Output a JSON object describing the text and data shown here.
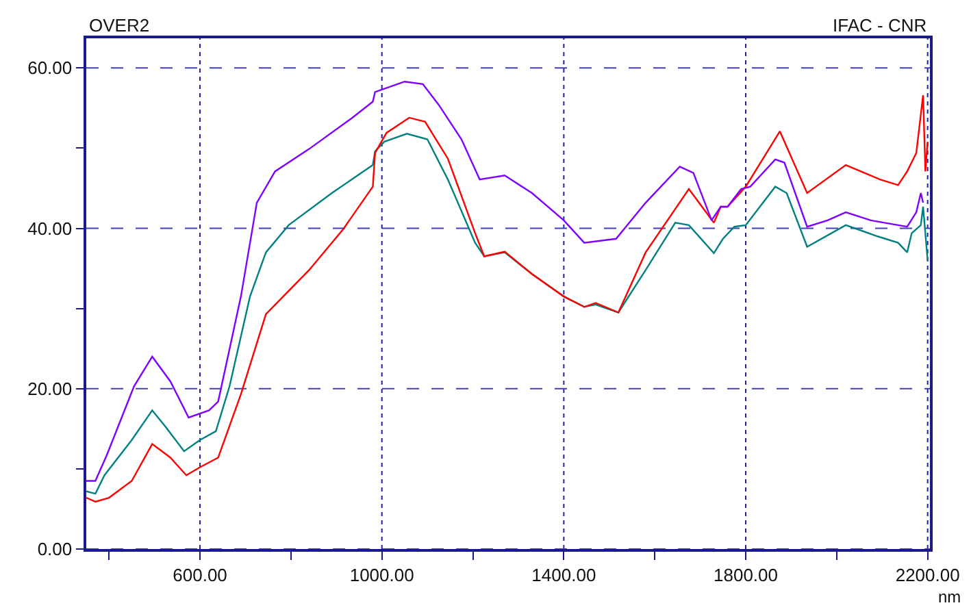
{
  "chart_data": {
    "type": "line",
    "title": "OVER2",
    "xlabel": "nm",
    "annotations": [
      "IFAC - CNR"
    ],
    "xlim": [
      350,
      2205
    ],
    "ylim": [
      0,
      63.7
    ],
    "xticks": [
      {
        "value": 400,
        "label": null
      },
      {
        "value": 600,
        "label": "600.00"
      },
      {
        "value": 800,
        "label": null
      },
      {
        "value": 1000,
        "label": "1000.00"
      },
      {
        "value": 1200,
        "label": null
      },
      {
        "value": 1400,
        "label": "1400.00"
      },
      {
        "value": 1600,
        "label": null
      },
      {
        "value": 1800,
        "label": "1800.00"
      },
      {
        "value": 2000,
        "label": null
      },
      {
        "value": 2200,
        "label": "2200.00"
      }
    ],
    "yticks": [
      {
        "value": 0,
        "label": "0.00"
      },
      {
        "value": 10,
        "label": null
      },
      {
        "value": 20,
        "label": "20.00"
      },
      {
        "value": 30,
        "label": null
      },
      {
        "value": 40,
        "label": "40.00"
      },
      {
        "value": 50,
        "label": null
      },
      {
        "value": 60,
        "label": "60.00"
      }
    ],
    "grid": true,
    "line_style": "solid",
    "marker": "none",
    "series": [
      {
        "color": "#8000ff",
        "x": [
          350,
          370,
          395,
          455,
          495,
          535,
          575,
          620,
          640,
          690,
          725,
          765,
          840,
          935,
          980,
          985,
          1050,
          1090,
          1125,
          1175,
          1215,
          1270,
          1330,
          1400,
          1445,
          1515,
          1580,
          1655,
          1685,
          1725,
          1745,
          1760,
          1790,
          1810,
          1865,
          1885,
          1935,
          1980,
          2020,
          2075,
          2135,
          2155,
          2175,
          2185,
          2190
        ],
        "values": [
          8.5,
          8.5,
          11.7,
          20.3,
          24.0,
          20.9,
          16.4,
          17.3,
          18.4,
          31.5,
          43.2,
          47.1,
          49.9,
          53.8,
          55.8,
          57.0,
          58.3,
          58.0,
          55.4,
          51.1,
          46.1,
          46.6,
          44.4,
          41.0,
          38.2,
          38.7,
          43.2,
          47.7,
          46.9,
          41.0,
          42.7,
          42.7,
          44.9,
          45.2,
          48.6,
          48.2,
          40.2,
          41.0,
          42.0,
          41.0,
          40.4,
          40.2,
          42.0,
          44.4,
          43.2
        ]
      },
      {
        "color": "#ff0000",
        "x": [
          350,
          370,
          400,
          450,
          495,
          535,
          570,
          600,
          640,
          690,
          745,
          840,
          915,
          980,
          985,
          1010,
          1060,
          1095,
          1145,
          1205,
          1225,
          1270,
          1330,
          1400,
          1445,
          1470,
          1520,
          1580,
          1675,
          1730,
          1745,
          1760,
          1800,
          1875,
          1935,
          2020,
          2095,
          2135,
          2155,
          2175,
          2190,
          2195,
          2200
        ],
        "values": [
          6.4,
          5.9,
          6.4,
          8.5,
          13.1,
          11.4,
          9.2,
          10.2,
          11.4,
          19.3,
          29.3,
          34.8,
          39.9,
          45.2,
          49.4,
          51.9,
          53.8,
          53.3,
          48.7,
          39.4,
          36.5,
          37.1,
          34.3,
          31.5,
          30.2,
          30.7,
          29.5,
          37.0,
          44.9,
          40.7,
          42.7,
          42.7,
          45.2,
          52.1,
          44.4,
          47.9,
          46.1,
          45.4,
          47.1,
          49.4,
          56.6,
          47.1,
          50.8
        ]
      },
      {
        "color": "#008080",
        "x": [
          350,
          370,
          390,
          450,
          495,
          525,
          565,
          600,
          635,
          665,
          710,
          745,
          795,
          890,
          980,
          985,
          1005,
          1055,
          1100,
          1145,
          1205,
          1225,
          1270,
          1330,
          1400,
          1445,
          1470,
          1520,
          1580,
          1645,
          1675,
          1730,
          1750,
          1775,
          1800,
          1865,
          1890,
          1935,
          2020,
          2090,
          2135,
          2155,
          2165,
          2185,
          2190,
          2200
        ],
        "values": [
          7.2,
          6.9,
          9.2,
          13.6,
          17.3,
          15.2,
          12.2,
          13.6,
          14.7,
          20.3,
          31.5,
          37.0,
          40.4,
          44.4,
          47.9,
          49.6,
          50.8,
          51.8,
          51.1,
          46.1,
          38.2,
          36.5,
          37.0,
          34.3,
          31.5,
          30.2,
          30.5,
          29.5,
          34.8,
          40.7,
          40.4,
          36.9,
          38.7,
          40.2,
          40.4,
          45.2,
          44.4,
          37.7,
          40.4,
          39.0,
          38.2,
          37.0,
          39.4,
          40.4,
          42.7,
          36.0
        ]
      }
    ]
  }
}
